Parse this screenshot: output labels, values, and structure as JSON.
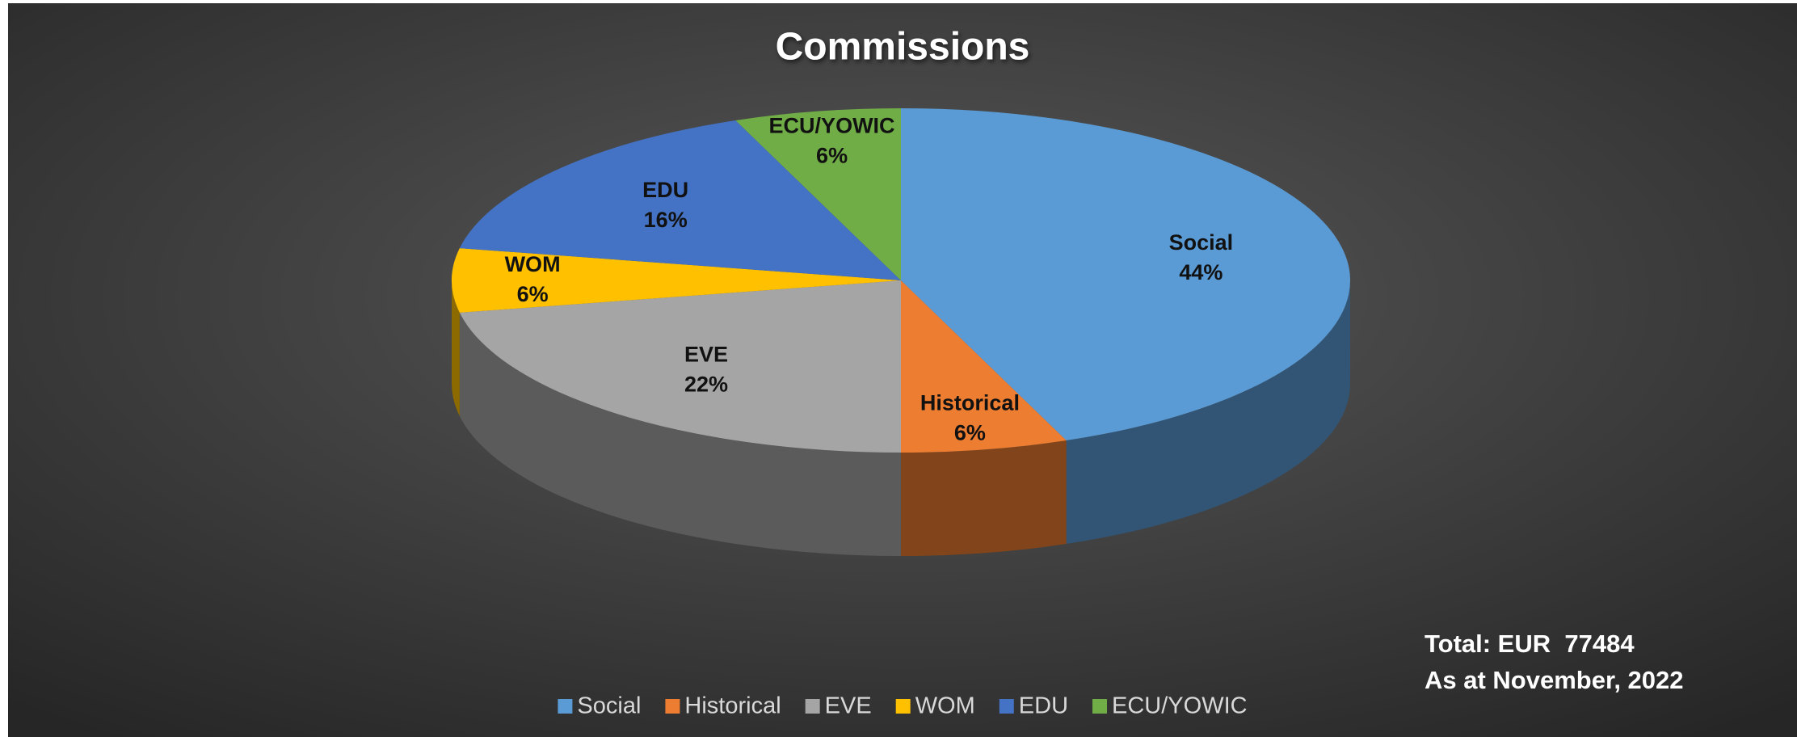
{
  "chart_data": {
    "type": "pie",
    "title": "Commissions",
    "categories": [
      "Social",
      "Historical",
      "EVE",
      "WOM",
      "EDU",
      "ECU/YOWIC"
    ],
    "values": [
      44,
      6,
      22,
      6,
      16,
      6
    ],
    "value_labels": [
      "44%",
      "6%",
      "22%",
      "6%",
      "16%",
      "6%"
    ],
    "colors": [
      "#5b9bd5",
      "#ed7d31",
      "#a5a5a5",
      "#ffc000",
      "#4472c4",
      "#70ad47"
    ],
    "annotations": [
      "Total: EUR  77484",
      "As at November, 2022"
    ],
    "legend": "bottom"
  }
}
